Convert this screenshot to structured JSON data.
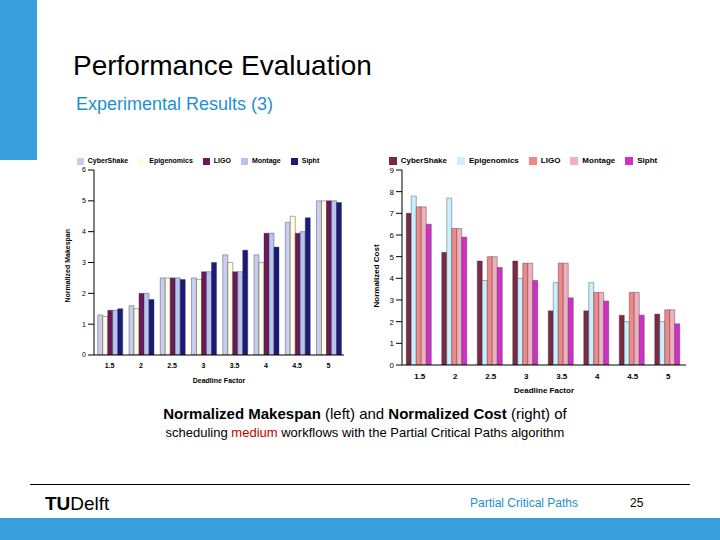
{
  "slide": {
    "title": "Performance Evaluation",
    "subtitle": "Experimental Results (3)",
    "caption": [
      [
        "Normalized Makespan",
        " (left) and ",
        "Normalized Cost",
        " (right) of"
      ],
      [
        "scheduling ",
        "medium",
        " workflows with the Partial Critical Paths algorithm"
      ]
    ],
    "footer": {
      "logo": [
        "TU",
        "Delft"
      ],
      "text": "Partial Critical Paths",
      "page": "25"
    }
  },
  "chart_data": [
    {
      "type": "bar",
      "x_label": "Deadline Factor",
      "y_label": "Normalized Makespan",
      "categories": [
        "1.5",
        "2",
        "2.5",
        "3",
        "3.5",
        "4",
        "4.5",
        "5"
      ],
      "series": [
        {
          "name": "CyberShake",
          "color": "#c8cdf0",
          "values": [
            1.3,
            1.6,
            2.5,
            2.5,
            3.25,
            3.25,
            4.3,
            5.0
          ]
        },
        {
          "name": "Epigenomics",
          "color": "#fffde0",
          "values": [
            1.25,
            1.5,
            2.5,
            2.45,
            3.0,
            3.0,
            4.5,
            5.0
          ]
        },
        {
          "name": "LIGO",
          "color": "#6a1a5a",
          "values": [
            1.45,
            2.0,
            2.5,
            2.7,
            2.7,
            3.95,
            3.95,
            5.0
          ]
        },
        {
          "name": "Montage",
          "color": "#b8c4f0",
          "values": [
            1.45,
            2.0,
            2.5,
            2.7,
            2.7,
            3.95,
            4.0,
            5.0
          ]
        },
        {
          "name": "Sipht",
          "color": "#1a1a7a",
          "values": [
            1.5,
            1.8,
            2.45,
            3.0,
            3.4,
            3.5,
            4.45,
            4.95
          ]
        }
      ],
      "ylim": [
        0,
        6
      ],
      "yticks": [
        0,
        1,
        2,
        3,
        4,
        5,
        6
      ],
      "grid": false,
      "legend": "top"
    },
    {
      "type": "bar",
      "x_label": "Deadline Factor",
      "y_label": "Normalized Cost",
      "categories": [
        "1.5",
        "2",
        "2.5",
        "3",
        "3.5",
        "4",
        "4.5",
        "5"
      ],
      "series": [
        {
          "name": "CyberShake",
          "color": "#7a2a45",
          "values": [
            7.0,
            5.2,
            4.8,
            4.8,
            2.5,
            2.5,
            2.3,
            2.35
          ]
        },
        {
          "name": "Epigenomics",
          "color": "#c8f0ff",
          "values": [
            7.8,
            7.7,
            3.9,
            4.0,
            3.8,
            3.8,
            2.0,
            2.0
          ]
        },
        {
          "name": "LIGO",
          "color": "#f08888",
          "values": [
            7.3,
            6.3,
            5.0,
            4.7,
            4.7,
            3.35,
            3.35,
            2.55
          ]
        },
        {
          "name": "Montage",
          "color": "#f0b0c0",
          "values": [
            7.3,
            6.3,
            5.0,
            4.7,
            4.7,
            3.35,
            3.35,
            2.55
          ]
        },
        {
          "name": "Sipht",
          "color": "#d030c8",
          "values": [
            6.5,
            5.9,
            4.5,
            3.9,
            3.1,
            2.95,
            2.3,
            1.9
          ]
        }
      ],
      "ylim": [
        0,
        9
      ],
      "yticks": [
        0,
        1,
        2,
        3,
        4,
        5,
        6,
        7,
        8,
        9
      ],
      "grid": false,
      "legend": "top"
    }
  ]
}
